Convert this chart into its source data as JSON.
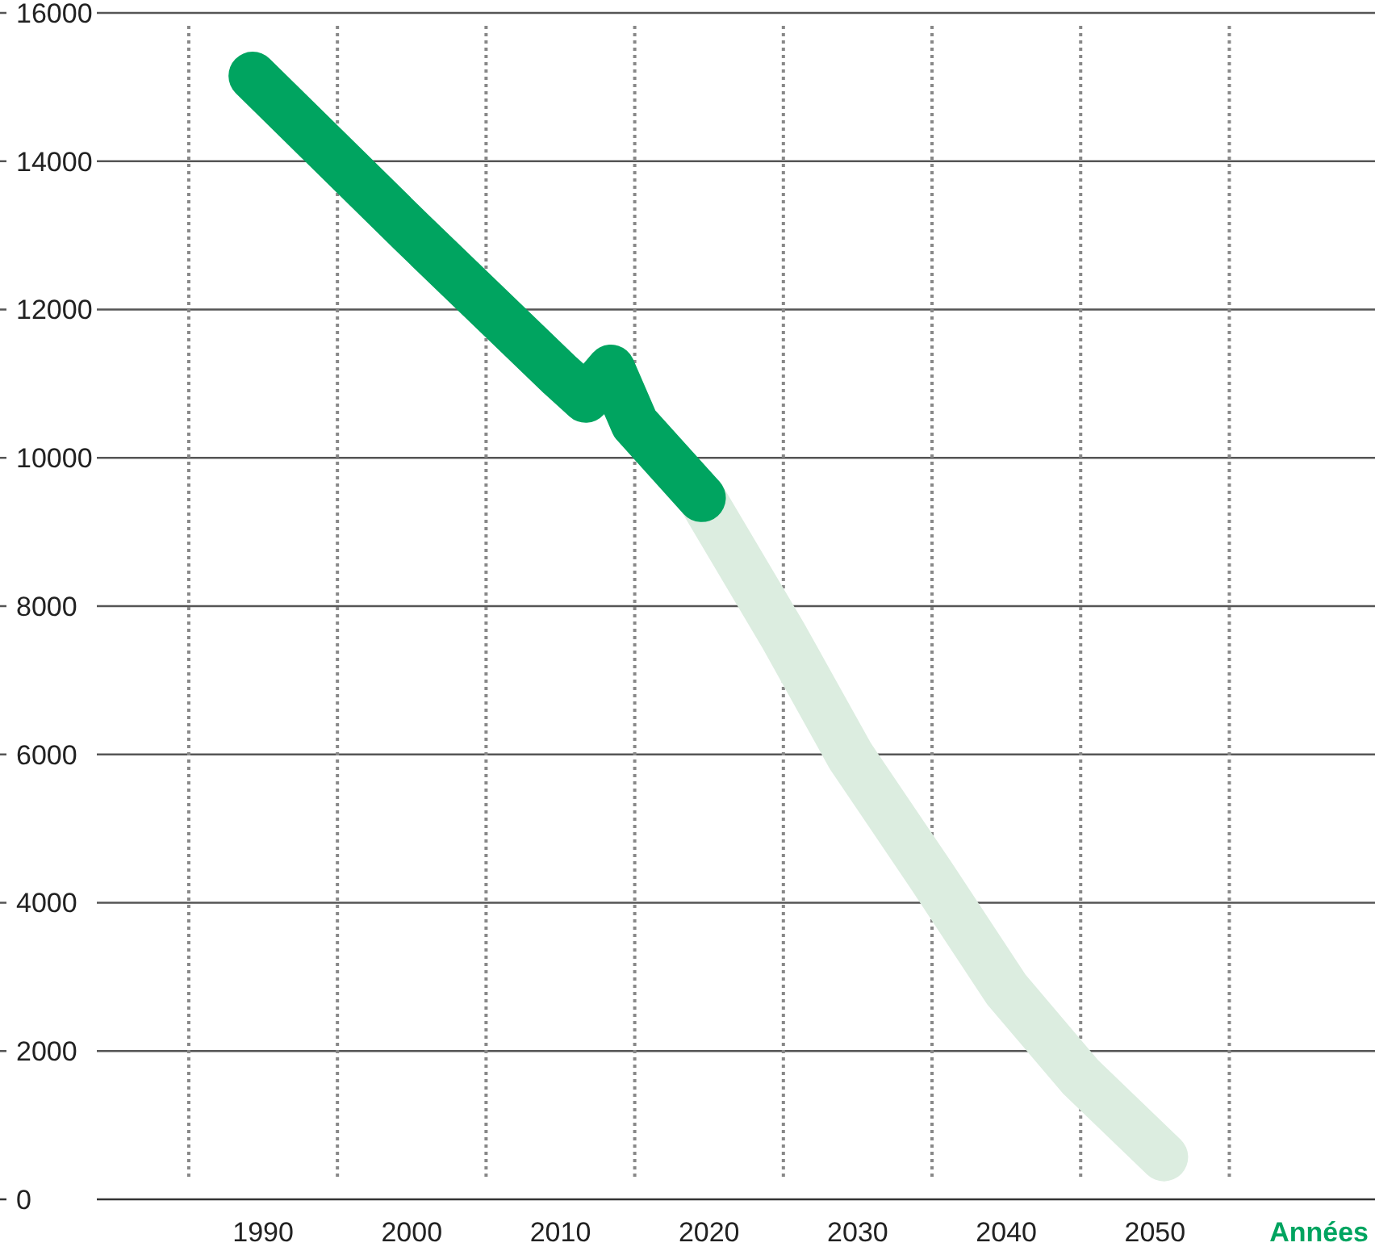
{
  "chart_data": {
    "type": "line",
    "xlabel": "Années",
    "xlim": [
      1972.3,
      2064.8
    ],
    "ylim": [
      0,
      16000
    ],
    "xticks": [
      {
        "value": 1985,
        "label": null
      },
      1990,
      {
        "value": 1995,
        "label": null
      },
      2000,
      {
        "value": 2005,
        "label": null
      },
      2010,
      {
        "value": 2015,
        "label": null
      },
      2020,
      {
        "value": 2025,
        "label": null
      },
      2030,
      {
        "value": 2035,
        "label": null
      },
      2040,
      {
        "value": 2045,
        "label": null
      },
      2050,
      {
        "value": 2055,
        "label": null
      }
    ],
    "yticks": [
      0,
      2000,
      4000,
      6000,
      8000,
      10000,
      12000,
      14000,
      16000
    ],
    "grid": true,
    "line_style": "solid",
    "series": [
      {
        "color": "#dcede0",
        "x": [
          2019.5,
          2025,
          2029.5,
          2035,
          2040,
          2045,
          2050.6
        ],
        "values": [
          9460,
          7600,
          5980,
          4350,
          2830,
          1650,
          570
        ]
      },
      {
        "color": "#00a460",
        "x": [
          1989.3,
          2000,
          2010,
          2011.7,
          2013.4,
          2015,
          2019.5
        ],
        "values": [
          15150,
          13040,
          11110,
          10800,
          11200,
          10460,
          9460
        ]
      }
    ]
  }
}
